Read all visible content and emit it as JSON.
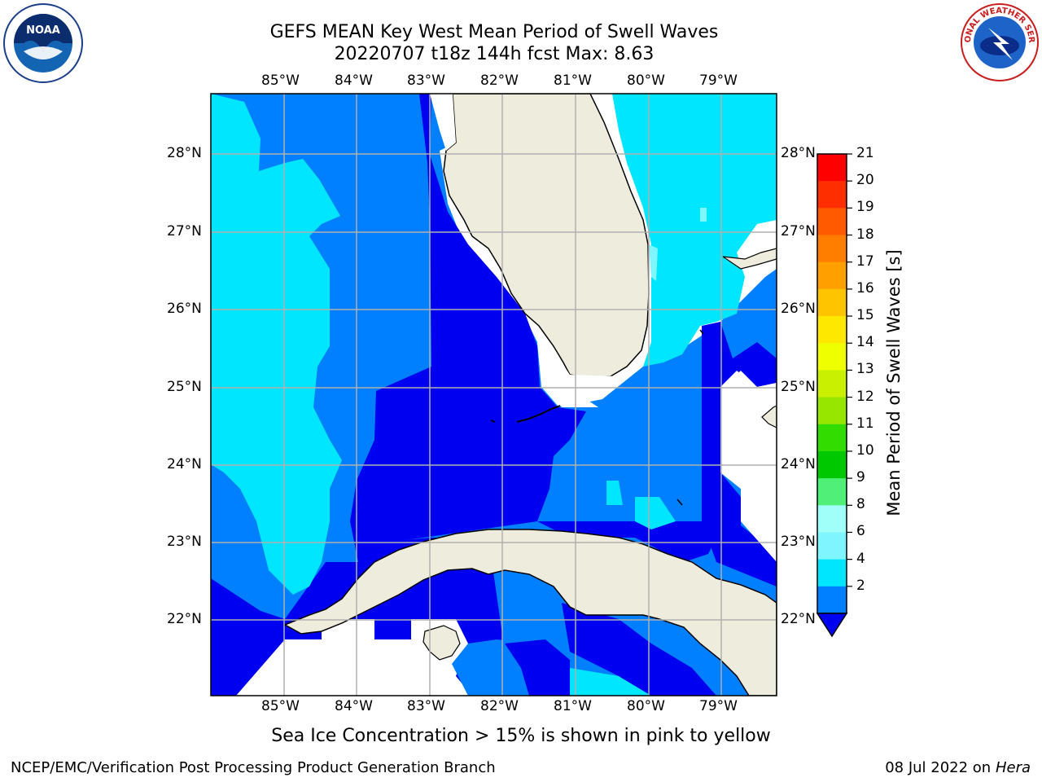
{
  "title": {
    "line1": "GEFS MEAN Key West Mean Period of Swell Waves",
    "line2": "20220707 t18z 144h fcst   Max: 8.63"
  },
  "map": {
    "lon_labels": [
      "85°W",
      "84°W",
      "83°W",
      "82°W",
      "81°W",
      "80°W",
      "79°W"
    ],
    "lat_labels": [
      "28°N",
      "27°N",
      "26°N",
      "25°N",
      "24°N",
      "23°N",
      "22°N"
    ],
    "colors": {
      "land": "#eeecdc",
      "ocean_2_4": "#0000f0",
      "ocean_4_6": "#0080ff",
      "ocean_6_8": "#00e6ff",
      "ocean_8_9": "#7ff6ff",
      "grid": "#b0b0b0"
    }
  },
  "colorbar": {
    "title": "Mean Period of Swell Waves [s]",
    "labels": [
      "21",
      "20",
      "19",
      "18",
      "17",
      "16",
      "15",
      "14",
      "13",
      "12",
      "11",
      "10",
      "9",
      "8",
      "6",
      "4",
      "2"
    ],
    "colors": [
      "#ff0000",
      "#ff2e00",
      "#ff5a00",
      "#ff7e00",
      "#ffa000",
      "#ffc400",
      "#ffe800",
      "#f0ff00",
      "#c8f000",
      "#96e600",
      "#32dc00",
      "#00c800",
      "#50f078",
      "#a0fff8",
      "#7ff6ff",
      "#00e6ff",
      "#0080ff"
    ]
  },
  "logos": {
    "noaa_text": "NOAA",
    "nws_text": "NATIONAL WEATHER SERVICE"
  },
  "caption": "Sea Ice Concentration > 15% is shown in pink to yellow",
  "footer": {
    "left": "NCEP/EMC/Verification Post Processing Product Generation Branch",
    "date": "08 Jul 2022 on ",
    "machine": "Hera"
  }
}
